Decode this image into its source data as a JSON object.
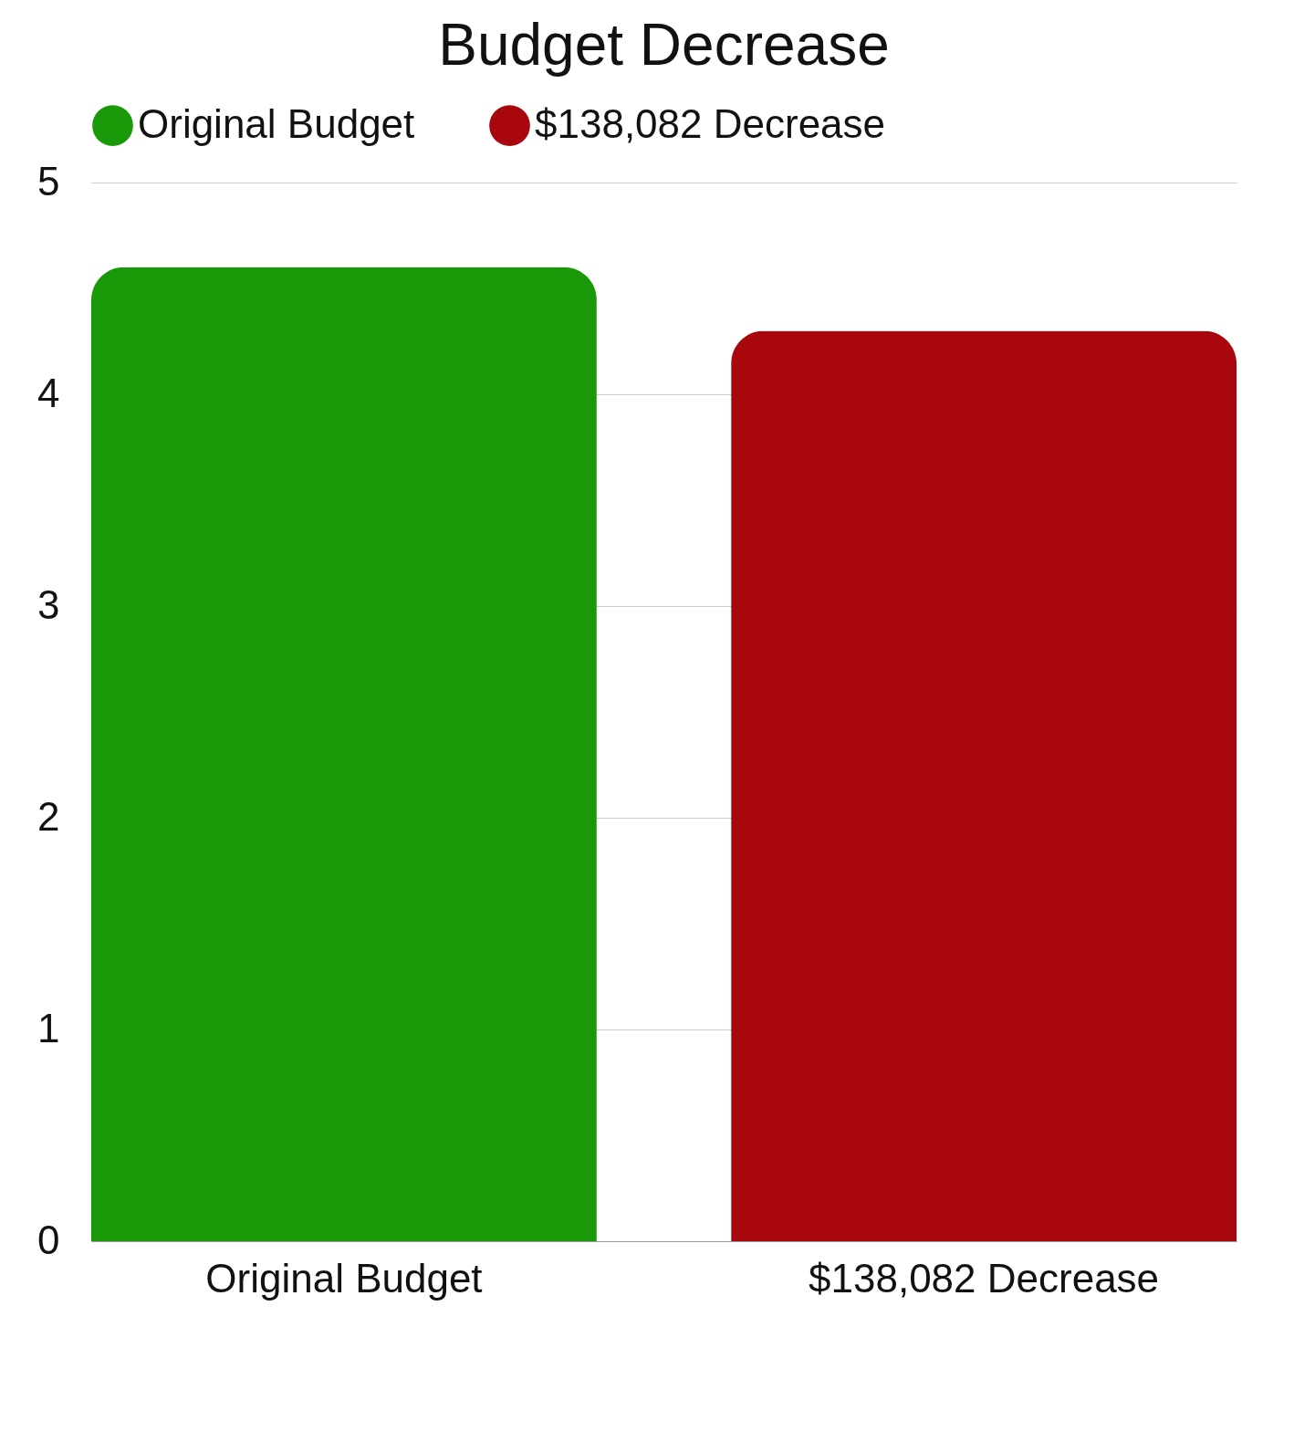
{
  "chart_data": {
    "type": "bar",
    "title": "Budget Decrease",
    "categories": [
      "Original Budget",
      "$138,082 Decrease"
    ],
    "series": [
      {
        "name": "Original Budget",
        "color": "#1a9908",
        "values": [
          4.6,
          null
        ]
      },
      {
        "name": "$138,082 Decrease",
        "color": "#a8070e",
        "values": [
          null,
          4.3
        ]
      }
    ],
    "ylim": [
      0,
      5
    ],
    "yticks": [
      0,
      1,
      2,
      3,
      4,
      5
    ],
    "grid": "y",
    "legend": "top"
  }
}
